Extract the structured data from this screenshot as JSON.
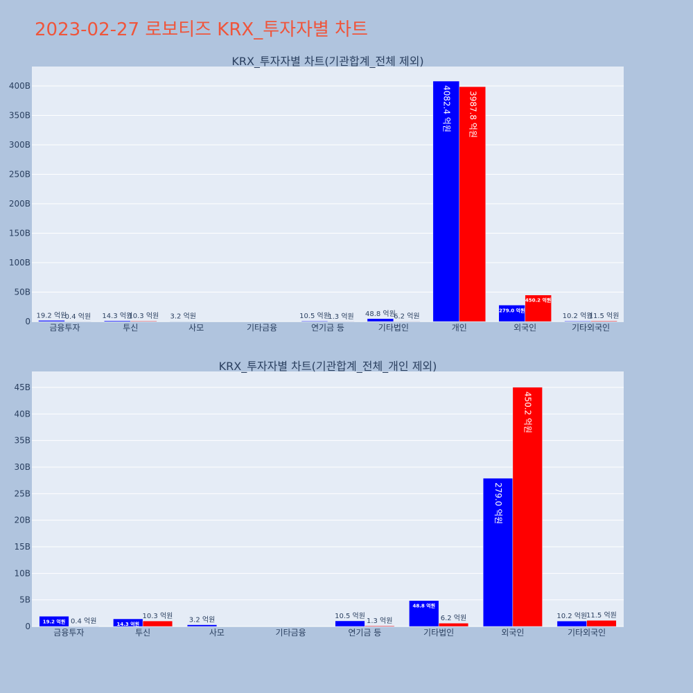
{
  "page": {
    "title": "2023-02-27 로보티즈 KRX_투자자별 차트",
    "title_color": "#ef553b",
    "background": "#b0c4de",
    "plot_background": "#e5ecf6"
  },
  "series_colors": [
    "#0000ff",
    "#ff0000"
  ],
  "chart_data": [
    {
      "type": "bar",
      "title": "KRX_투자자별 차트(기관합계_전체 제외)",
      "categories": [
        "금융투자",
        "투신",
        "사모",
        "기타금융",
        "연기금 등",
        "기타법인",
        "개인",
        "외국인",
        "기타외국인"
      ],
      "series": [
        {
          "values": [
            1920000000.0,
            1430000000.0,
            320000000.0,
            0,
            1050000000.0,
            4880000000.0,
            408240000000.0,
            27900000000.0,
            1020000000.0
          ],
          "labels": [
            "19.2 억원",
            "14.3 억원",
            "3.2 억원",
            "",
            "10.5 억원",
            "48.8 억원",
            "4082.4 억원",
            "279.0 억원",
            "10.2 억원"
          ]
        },
        {
          "values": [
            40000000.0,
            1030000000.0,
            0,
            0,
            130000000.0,
            620000000.0,
            398780000000.0,
            45020000000.0,
            1150000000.0
          ],
          "labels": [
            "0.4 억원",
            "10.3 억원",
            "",
            "",
            "1.3 억원",
            "6.2  억원",
            "3987.8 억원",
            "450.2 억원",
            "11.5 억원"
          ]
        }
      ],
      "yticks": [
        0,
        50000000000.0,
        100000000000.0,
        150000000000.0,
        200000000000.0,
        250000000000.0,
        300000000000.0,
        350000000000.0,
        400000000000.0
      ],
      "ytick_labels": [
        "0",
        "50B",
        "100B",
        "150B",
        "200B",
        "250B",
        "300B",
        "350B",
        "400B"
      ],
      "ylim": [
        0,
        433000000000.0
      ],
      "grid": true,
      "legend": "none"
    },
    {
      "type": "bar",
      "title": "KRX_투자자별 차트(기관합계_전체_개인 제외)",
      "categories": [
        "금융투자",
        "투신",
        "사모",
        "기타금융",
        "연기금 등",
        "기타법인",
        "외국인",
        "기타외국인"
      ],
      "series": [
        {
          "values": [
            1920000000.0,
            1430000000.0,
            320000000.0,
            0,
            1050000000.0,
            4880000000.0,
            27900000000.0,
            1020000000.0
          ],
          "labels": [
            "19.2 억원",
            "14.3 억원",
            "3.2 억원",
            "",
            "10.5 억원",
            "48.8 억원",
            "279.0 억원",
            "10.2 억원"
          ]
        },
        {
          "values": [
            40000000.0,
            1030000000.0,
            0,
            0,
            130000000.0,
            620000000.0,
            45020000000.0,
            1150000000.0
          ],
          "labels": [
            "0.4 억원",
            "10.3 억원",
            "",
            "",
            "1.3 억원",
            "6.2 억원",
            "450.2 억원",
            "11.5 억원"
          ]
        }
      ],
      "yticks": [
        0,
        5000000000.0,
        10000000000.0,
        15000000000.0,
        20000000000.0,
        25000000000.0,
        30000000000.0,
        35000000000.0,
        40000000000.0,
        45000000000.0
      ],
      "ytick_labels": [
        "0",
        "5B",
        "10B",
        "15B",
        "20B",
        "25B",
        "30B",
        "35B",
        "40B",
        "45B"
      ],
      "ylim": [
        0,
        48000000000.0
      ],
      "grid": true,
      "legend": "none"
    }
  ]
}
